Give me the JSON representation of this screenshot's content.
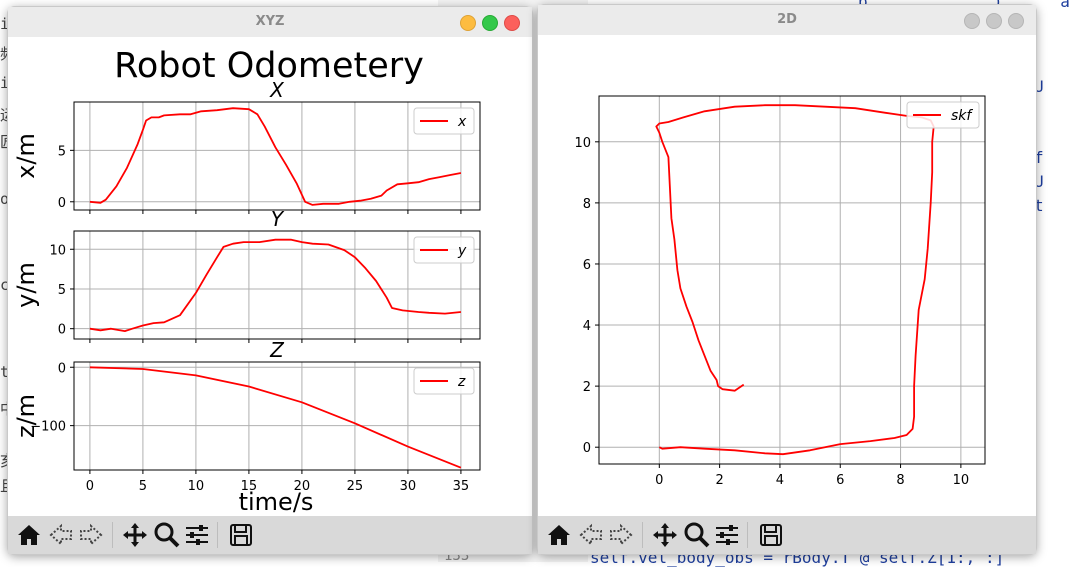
{
  "editor": {
    "lines": [
      {
        "text": "p.  _         )  ,   a"
      },
      {
        "text": "U"
      },
      {
        "text": "f"
      },
      {
        "text": "U"
      },
      {
        "text": "t"
      }
    ],
    "left_fragments": [
      "id",
      "频",
      "ig",
      "运",
      "匠",
      "o",
      "cs",
      "t",
      "中",
      "亥",
      "且"
    ],
    "bottom_line_number": "133",
    "bottom_code": "self.vel_body_obs = rBody.T @ self.Z[1:, :]"
  },
  "windows": {
    "xyz": {
      "title": "XYZ",
      "suptitle": "Robot Odometery",
      "xlabel": "time/s"
    },
    "twod": {
      "title": "2D"
    }
  },
  "toolbar_icons": [
    "home-icon",
    "back-icon",
    "forward-icon",
    "pan-icon",
    "zoom-icon",
    "configure-icon",
    "save-icon"
  ],
  "colors": {
    "series": "#ff0000",
    "grid": "#b0b0b0",
    "close": "#fc605c",
    "minimize": "#fdbc40",
    "maximize": "#34c84a",
    "inactive": "#c8c8c8"
  },
  "chart_data": [
    {
      "type": "line",
      "title": "X",
      "ylabel": "x/m",
      "xlim": [
        -1.5,
        36.8
      ],
      "ylim": [
        -0.8,
        9.7
      ],
      "xticks": [
        0,
        5,
        10,
        15,
        20,
        25,
        30,
        35
      ],
      "yticks": [
        0,
        5
      ],
      "legend": "upper right",
      "grid": true,
      "series": [
        {
          "name": "x",
          "points": [
            [
              0,
              0
            ],
            [
              1,
              -0.1
            ],
            [
              1.5,
              0.2
            ],
            [
              2.5,
              1.5
            ],
            [
              3.5,
              3.3
            ],
            [
              4.5,
              5.6
            ],
            [
              5,
              7.0
            ],
            [
              5.3,
              7.9
            ],
            [
              5.8,
              8.2
            ],
            [
              6.5,
              8.2
            ],
            [
              7,
              8.4
            ],
            [
              8.5,
              8.5
            ],
            [
              9.5,
              8.5
            ],
            [
              10.5,
              8.8
            ],
            [
              12,
              8.9
            ],
            [
              13.5,
              9.1
            ],
            [
              15,
              9.0
            ],
            [
              15.8,
              8.5
            ],
            [
              16.5,
              7.3
            ],
            [
              17.5,
              5.3
            ],
            [
              18.5,
              3.6
            ],
            [
              19.5,
              1.8
            ],
            [
              20.3,
              0.0
            ],
            [
              21,
              -0.3
            ],
            [
              22,
              -0.2
            ],
            [
              23.5,
              -0.2
            ],
            [
              24.5,
              0.0
            ],
            [
              25.5,
              0.1
            ],
            [
              26.5,
              0.3
            ],
            [
              27.5,
              0.6
            ],
            [
              28,
              1.1
            ],
            [
              29,
              1.7
            ],
            [
              30,
              1.8
            ],
            [
              31,
              1.9
            ],
            [
              32,
              2.2
            ],
            [
              33,
              2.4
            ],
            [
              34,
              2.6
            ],
            [
              35,
              2.8
            ]
          ]
        }
      ]
    },
    {
      "type": "line",
      "title": "Y",
      "ylabel": "y/m",
      "xlim": [
        -1.5,
        36.8
      ],
      "ylim": [
        -1.3,
        12.3
      ],
      "xticks": [
        0,
        5,
        10,
        15,
        20,
        25,
        30,
        35
      ],
      "yticks": [
        0,
        5,
        10
      ],
      "legend": "upper right",
      "grid": true,
      "series": [
        {
          "name": "y",
          "points": [
            [
              0,
              0
            ],
            [
              1,
              -0.2
            ],
            [
              2,
              0.0
            ],
            [
              3.3,
              -0.3
            ],
            [
              4,
              0.0
            ],
            [
              5,
              0.4
            ],
            [
              6,
              0.7
            ],
            [
              7,
              0.8
            ],
            [
              8.5,
              1.7
            ],
            [
              10,
              4.5
            ],
            [
              11,
              6.8
            ],
            [
              12,
              9.0
            ],
            [
              12.6,
              10.3
            ],
            [
              13.5,
              10.7
            ],
            [
              14.5,
              10.9
            ],
            [
              16,
              10.9
            ],
            [
              17.5,
              11.2
            ],
            [
              19,
              11.2
            ],
            [
              20,
              10.9
            ],
            [
              21,
              10.7
            ],
            [
              22.5,
              10.6
            ],
            [
              24,
              9.9
            ],
            [
              25,
              9.0
            ],
            [
              26,
              7.6
            ],
            [
              27,
              6.0
            ],
            [
              28,
              3.9
            ],
            [
              28.5,
              2.6
            ],
            [
              29.5,
              2.3
            ],
            [
              31,
              2.1
            ],
            [
              32,
              2.0
            ],
            [
              33.5,
              1.9
            ],
            [
              35,
              2.1
            ]
          ]
        }
      ]
    },
    {
      "type": "line",
      "title": "Z",
      "ylabel": "z/m",
      "xlim": [
        -1.5,
        36.8
      ],
      "ylim": [
        -176,
        9
      ],
      "xticks": [
        0,
        5,
        10,
        15,
        20,
        25,
        30,
        35
      ],
      "xtick_labels": [
        "0",
        "5",
        "10",
        "15",
        "20",
        "25",
        "30",
        "35"
      ],
      "yticks": [
        0,
        -100
      ],
      "ytick_labels": [
        "0",
        "−100"
      ],
      "legend": "upper right",
      "grid": true,
      "series": [
        {
          "name": "z",
          "points": [
            [
              0,
              0
            ],
            [
              5,
              -3
            ],
            [
              10,
              -14
            ],
            [
              15,
              -33
            ],
            [
              20,
              -60
            ],
            [
              25,
              -96
            ],
            [
              30,
              -136
            ],
            [
              35,
              -172
            ]
          ]
        }
      ]
    },
    {
      "type": "line",
      "title": "",
      "xlim": [
        -2,
        10.8
      ],
      "ylim": [
        -0.55,
        11.5
      ],
      "xticks": [
        0,
        2,
        4,
        6,
        8,
        10
      ],
      "yticks": [
        0,
        2,
        4,
        6,
        8,
        10
      ],
      "legend": "upper right",
      "grid": true,
      "series": [
        {
          "name": "skf",
          "points": [
            [
              0,
              0
            ],
            [
              0.1,
              -0.05
            ],
            [
              0.7,
              0.0
            ],
            [
              1.5,
              -0.05
            ],
            [
              2.5,
              -0.1
            ],
            [
              3.5,
              -0.2
            ],
            [
              4.1,
              -0.23
            ],
            [
              5,
              -0.1
            ],
            [
              6,
              0.1
            ],
            [
              7,
              0.2
            ],
            [
              7.8,
              0.3
            ],
            [
              8.2,
              0.4
            ],
            [
              8.4,
              0.6
            ],
            [
              8.45,
              1.0
            ],
            [
              8.45,
              2.0
            ],
            [
              8.5,
              3.0
            ],
            [
              8.6,
              4.5
            ],
            [
              8.8,
              5.5
            ],
            [
              8.9,
              6.5
            ],
            [
              9.0,
              8.0
            ],
            [
              9.05,
              9.0
            ],
            [
              9.05,
              10.0
            ],
            [
              9.1,
              10.5
            ],
            [
              9.0,
              10.7
            ],
            [
              8.7,
              10.8
            ],
            [
              8.2,
              10.85
            ],
            [
              7.5,
              10.95
            ],
            [
              6.5,
              11.1
            ],
            [
              5.5,
              11.15
            ],
            [
              4.5,
              11.2
            ],
            [
              3.5,
              11.2
            ],
            [
              2.5,
              11.15
            ],
            [
              1.5,
              11.0
            ],
            [
              0.8,
              10.8
            ],
            [
              0.3,
              10.65
            ],
            [
              0.0,
              10.6
            ],
            [
              -0.1,
              10.5
            ],
            [
              0.0,
              10.3
            ],
            [
              0.1,
              10.0
            ],
            [
              0.3,
              9.5
            ],
            [
              0.35,
              8.5
            ],
            [
              0.4,
              7.5
            ],
            [
              0.5,
              6.8
            ],
            [
              0.6,
              5.8
            ],
            [
              0.7,
              5.2
            ],
            [
              0.9,
              4.6
            ],
            [
              1.1,
              4.1
            ],
            [
              1.3,
              3.5
            ],
            [
              1.5,
              3.0
            ],
            [
              1.7,
              2.5
            ],
            [
              1.9,
              2.2
            ],
            [
              1.95,
              2.0
            ],
            [
              2.1,
              1.9
            ],
            [
              2.5,
              1.85
            ],
            [
              2.8,
              2.05
            ]
          ]
        }
      ]
    }
  ]
}
